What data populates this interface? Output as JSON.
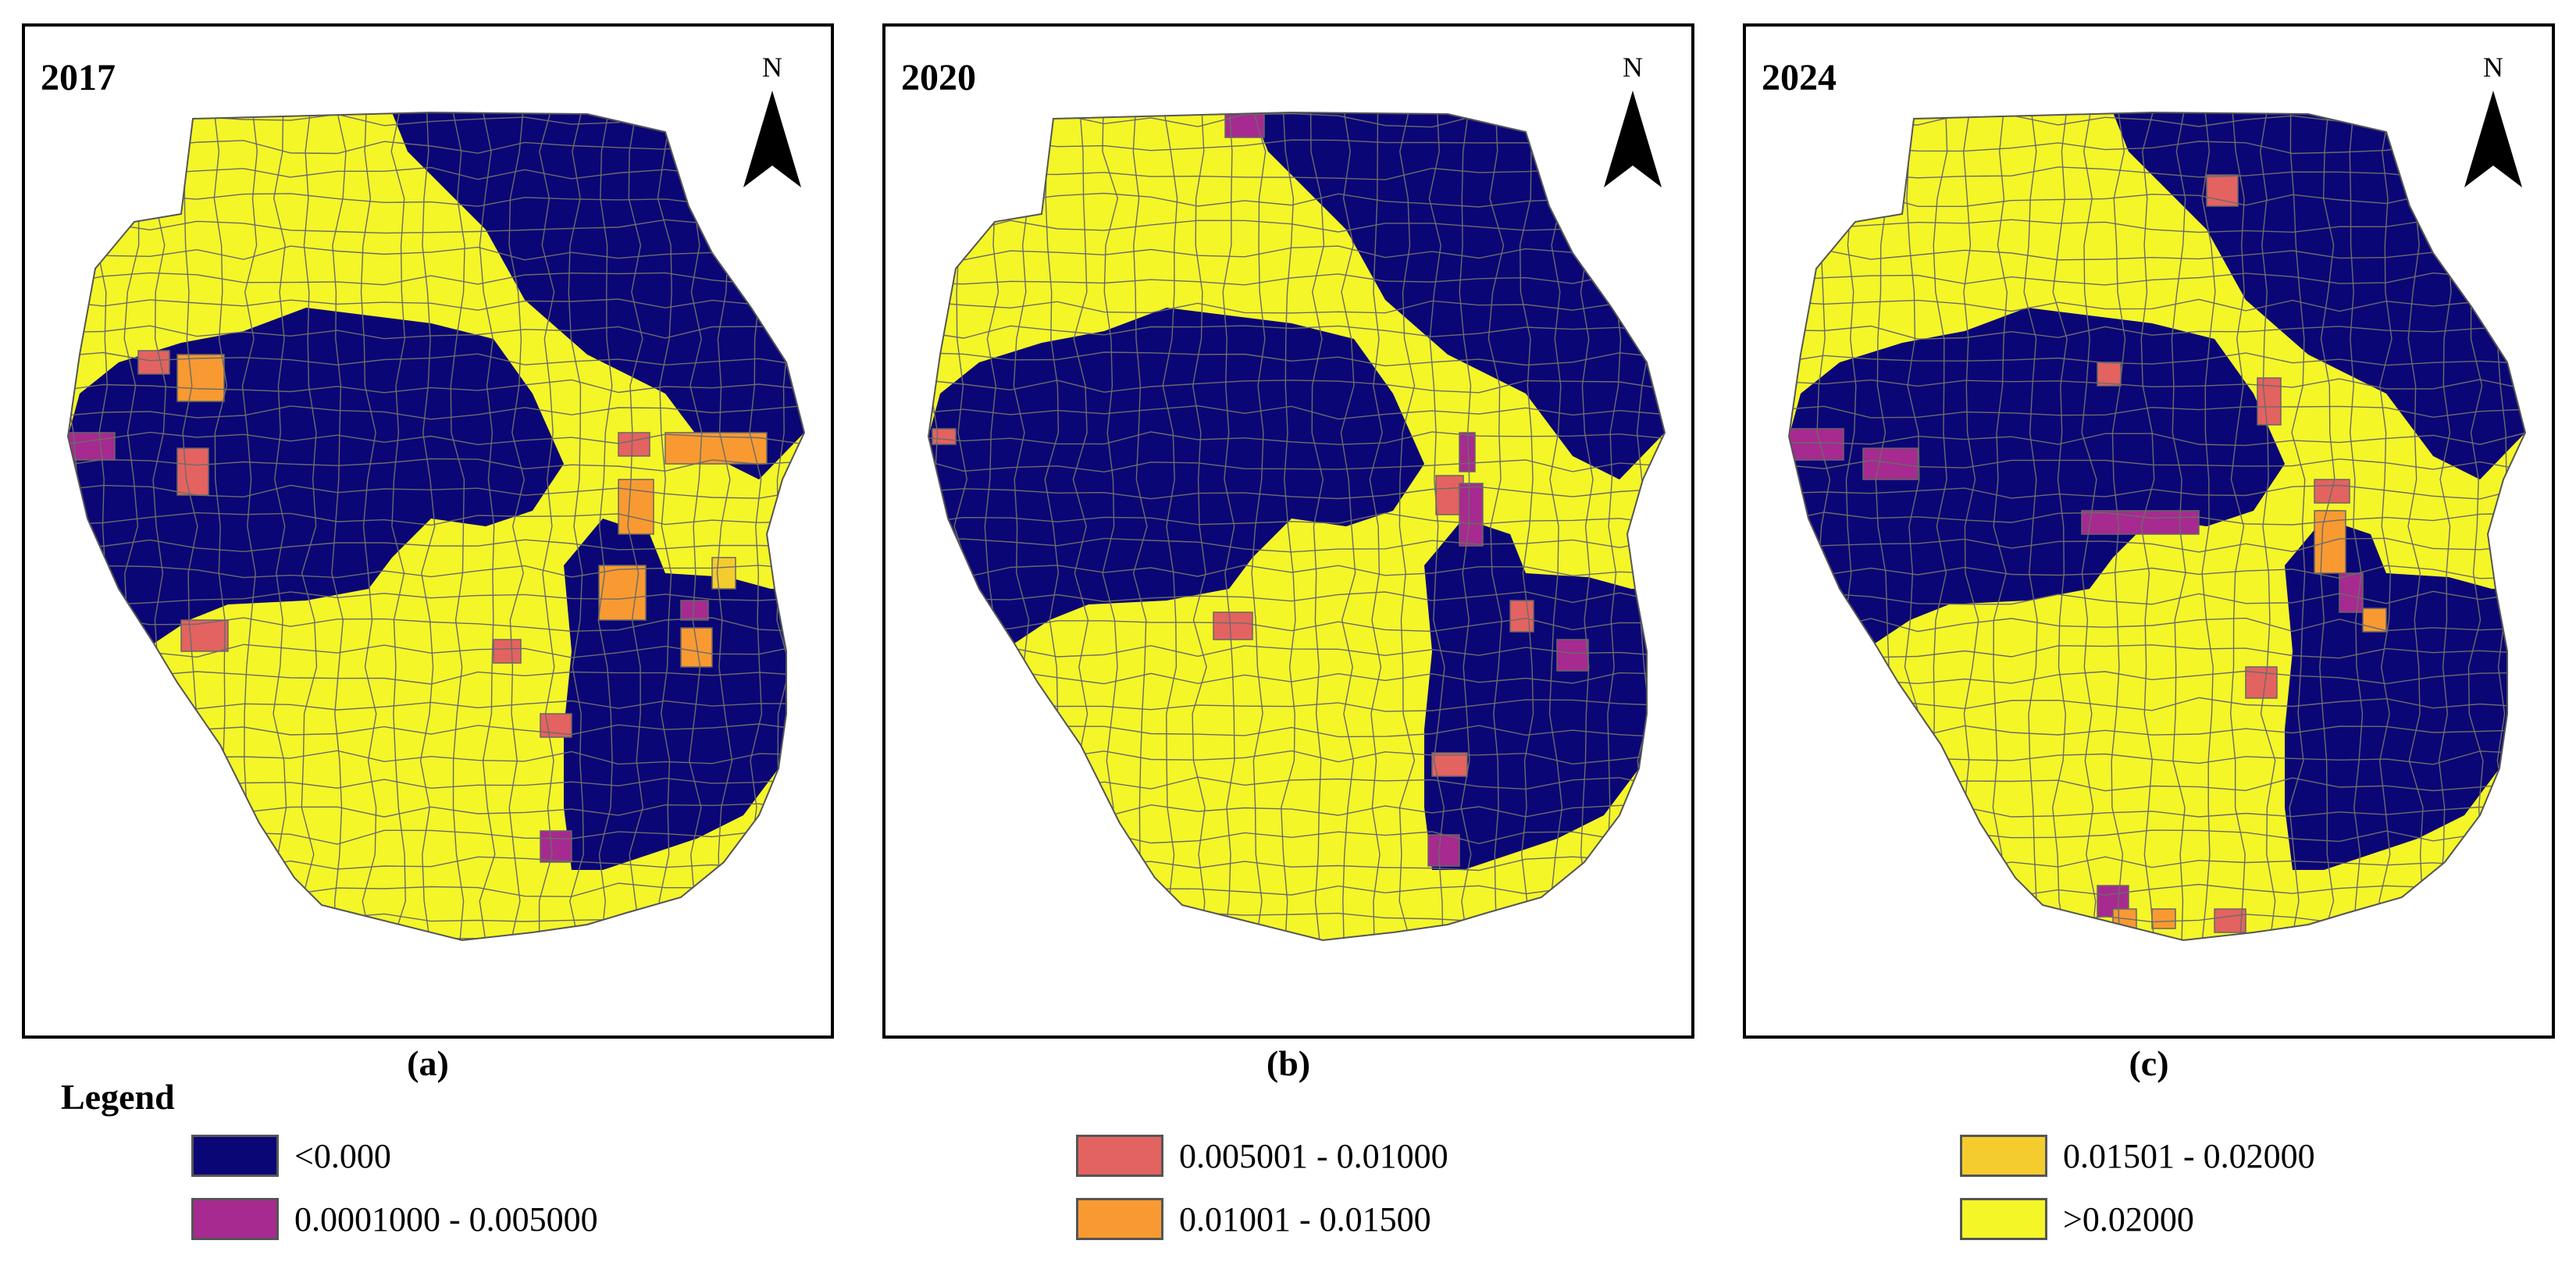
{
  "north_label": "N",
  "panels": [
    {
      "year": "2017",
      "caption": "(a)"
    },
    {
      "year": "2020",
      "caption": "(b)"
    },
    {
      "year": "2024",
      "caption": "(c)"
    }
  ],
  "legend": {
    "title": "Legend",
    "items": [
      {
        "label": "<0.000",
        "color": "#0b0676"
      },
      {
        "label": "0.0001000 - 0.005000",
        "color": "#a62a8f"
      },
      {
        "label": "0.005001 - 0.01000",
        "color": "#e36360"
      },
      {
        "label": "0.01001 - 0.01500",
        "color": "#f89a31"
      },
      {
        "label": "0.01501 - 0.02000",
        "color": "#f5cc2e"
      },
      {
        "label": ">0.02000",
        "color": "#f4f628"
      }
    ]
  }
}
